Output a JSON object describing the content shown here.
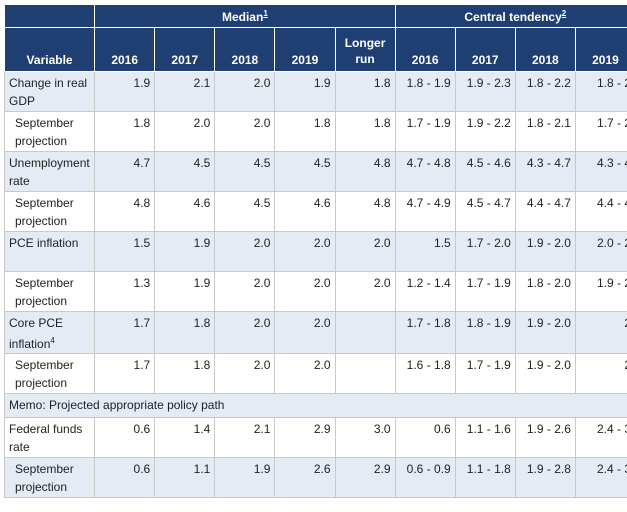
{
  "header": {
    "median_label": "Median",
    "median_note": "1",
    "central_label": "Central tendency",
    "central_note": "2",
    "variable_label": "Variable",
    "median_years": [
      "2016",
      "2017",
      "2018",
      "2019"
    ],
    "longer_run_label": [
      "Longer",
      "run"
    ],
    "central_years": [
      "2016",
      "2017",
      "2018",
      "2019"
    ]
  },
  "rows": [
    {
      "label": "Change in real GDP",
      "note": "",
      "median": [
        "1.9",
        "2.1",
        "2.0",
        "1.9",
        "1.8"
      ],
      "central": [
        "1.8 - 1.9",
        "1.9 - 2.3",
        "1.8 - 2.2",
        "1.8 - 2"
      ]
    },
    {
      "label": "September projection",
      "note": "",
      "median": [
        "1.8",
        "2.0",
        "2.0",
        "1.8",
        "1.8"
      ],
      "central": [
        "1.7 - 1.9",
        "1.9 - 2.2",
        "1.8 - 2.1",
        "1.7 - 2"
      ]
    },
    {
      "label": "Unemployment rate",
      "note": "",
      "median": [
        "4.7",
        "4.5",
        "4.5",
        "4.5",
        "4.8"
      ],
      "central": [
        "4.7 - 4.8",
        "4.5 - 4.6",
        "4.3 - 4.7",
        "4.3 - 4"
      ]
    },
    {
      "label": "September projection",
      "note": "",
      "median": [
        "4.8",
        "4.6",
        "4.5",
        "4.6",
        "4.8"
      ],
      "central": [
        "4.7 - 4.9",
        "4.5 - 4.7",
        "4.4 - 4.7",
        "4.4 - 4"
      ]
    },
    {
      "label": "PCE inflation",
      "note": "",
      "median": [
        "1.5",
        "1.9",
        "2.0",
        "2.0",
        "2.0"
      ],
      "central": [
        "1.5",
        "1.7 - 2.0",
        "1.9 - 2.0",
        "2.0 - 2"
      ]
    },
    {
      "label": "September projection",
      "note": "",
      "median": [
        "1.3",
        "1.9",
        "2.0",
        "2.0",
        "2.0"
      ],
      "central": [
        "1.2 - 1.4",
        "1.7 - 1.9",
        "1.8 - 2.0",
        "1.9 - 2"
      ]
    },
    {
      "label": "Core PCE inflation",
      "note": "4",
      "median": [
        "1.7",
        "1.8",
        "2.0",
        "2.0",
        ""
      ],
      "central": [
        "1.7 - 1.8",
        "1.8 - 1.9",
        "1.9 - 2.0",
        "2"
      ]
    },
    {
      "label": "September projection",
      "note": "",
      "median": [
        "1.7",
        "1.8",
        "2.0",
        "2.0",
        ""
      ],
      "central": [
        "1.6 - 1.8",
        "1.7 - 1.9",
        "1.9 - 2.0",
        "2"
      ]
    }
  ],
  "memo": {
    "label": "Memo: Projected appropriate policy path"
  },
  "memo_rows": [
    {
      "label": "Federal funds rate",
      "note": "",
      "median": [
        "0.6",
        "1.4",
        "2.1",
        "2.9",
        "3.0"
      ],
      "central": [
        "0.6",
        "1.1 - 1.6",
        "1.9 - 2.6",
        "2.4 - 3"
      ]
    },
    {
      "label": "September projection",
      "note": "",
      "median": [
        "0.6",
        "1.1",
        "1.9",
        "2.6",
        "2.9"
      ],
      "central": [
        "0.6 - 0.9",
        "1.1 - 1.8",
        "1.9 - 2.8",
        "2.4 - 3"
      ]
    }
  ],
  "colors": {
    "header_bg": "#1f3f72",
    "shade_row": "#e4ebf4",
    "border": "#c9c9c9"
  }
}
